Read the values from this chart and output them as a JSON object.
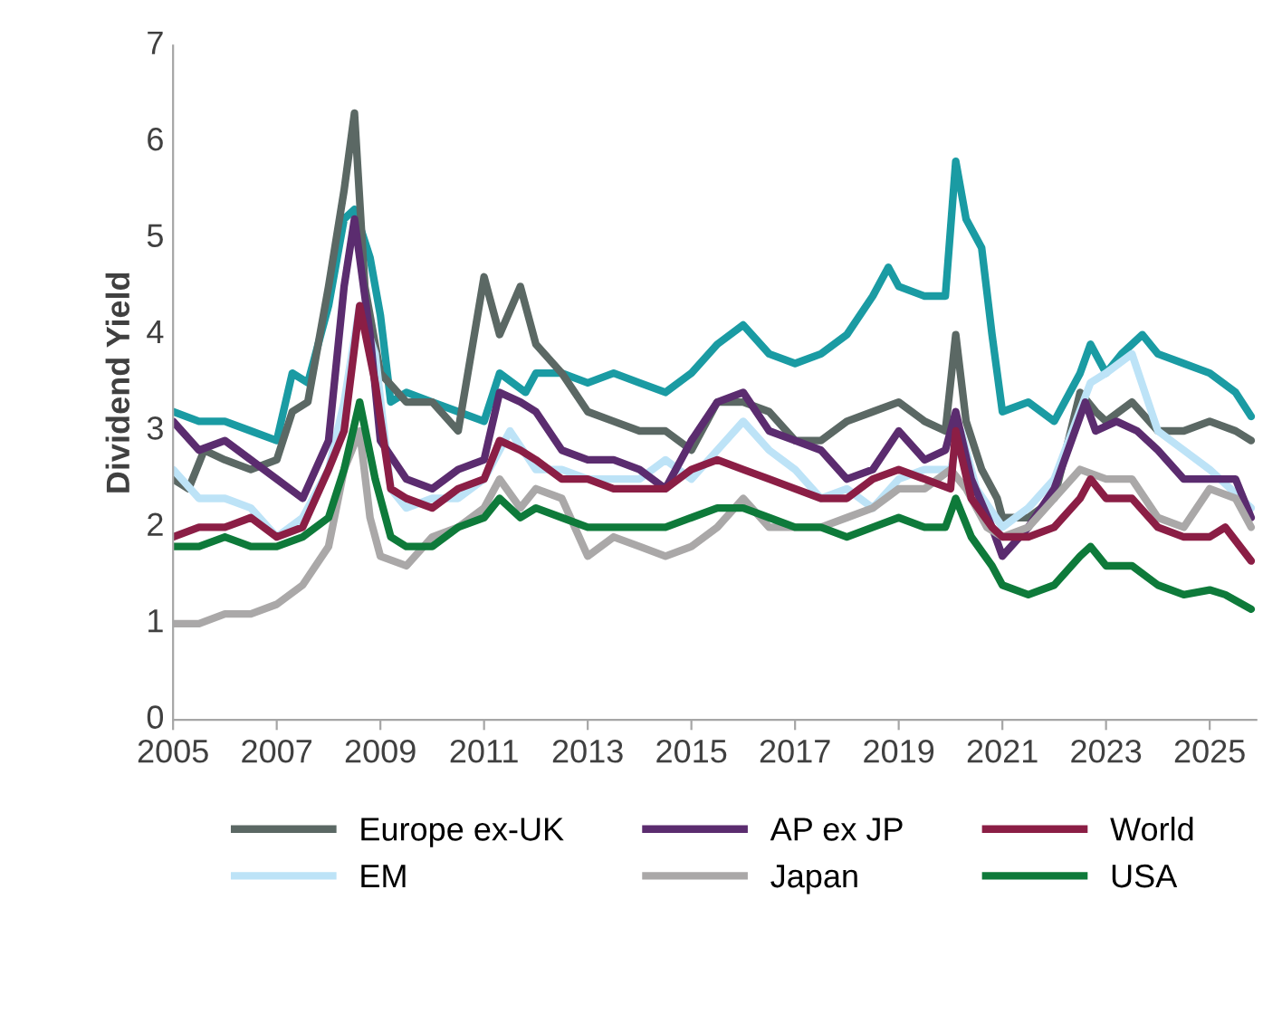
{
  "chart_data": {
    "type": "line",
    "ylabel": "Dividend Yield",
    "xlim": [
      2005,
      2025.9
    ],
    "xticks": [
      2005,
      2007,
      2009,
      2011,
      2013,
      2015,
      2017,
      2019,
      2021,
      2023,
      2025
    ],
    "ylim": [
      0,
      7
    ],
    "yticks": [
      0,
      1,
      2,
      3,
      4,
      5,
      6,
      7
    ],
    "grid": false,
    "legend": "bottom",
    "marker": "none",
    "line_style": "solid",
    "series": [
      {
        "color": "#1a9ba3",
        "x": [
          2005,
          2005.5,
          2006,
          2006.5,
          2007,
          2007.3,
          2007.6,
          2008,
          2008.3,
          2008.5,
          2008.8,
          2009,
          2009.2,
          2009.5,
          2010,
          2010.5,
          2011,
          2011.3,
          2011.8,
          2012,
          2012.5,
          2013,
          2013.5,
          2014,
          2014.5,
          2015,
          2015.5,
          2016,
          2016.5,
          2017,
          2017.5,
          2018,
          2018.5,
          2018.8,
          2019,
          2019.5,
          2019.9,
          2020.1,
          2020.3,
          2020.6,
          2020.8,
          2021,
          2021.5,
          2022,
          2022.5,
          2022.7,
          2023,
          2023.3,
          2023.7,
          2024,
          2024.5,
          2025,
          2025.5,
          2025.8
        ],
        "values": [
          3.2,
          3.1,
          3.1,
          3.0,
          2.9,
          3.6,
          3.5,
          4.3,
          5.2,
          5.3,
          4.8,
          4.2,
          3.3,
          3.4,
          3.3,
          3.2,
          3.1,
          3.6,
          3.4,
          3.6,
          3.6,
          3.5,
          3.6,
          3.5,
          3.4,
          3.6,
          3.9,
          4.1,
          3.8,
          3.7,
          3.8,
          4.0,
          4.4,
          4.7,
          4.5,
          4.4,
          4.4,
          5.8,
          5.2,
          4.9,
          4.0,
          3.2,
          3.3,
          3.1,
          3.6,
          3.9,
          3.6,
          3.8,
          4.0,
          3.8,
          3.7,
          3.6,
          3.4,
          3.15
        ]
      },
      {
        "name": "Europe ex-UK",
        "color": "#5b6864",
        "x": [
          2005,
          2005.3,
          2005.6,
          2006,
          2006.5,
          2007,
          2007.3,
          2007.6,
          2008,
          2008.3,
          2008.5,
          2008.7,
          2009,
          2009.5,
          2010,
          2010.5,
          2011,
          2011.3,
          2011.7,
          2012,
          2012.5,
          2013,
          2013.5,
          2014,
          2014.5,
          2015,
          2015.5,
          2016,
          2016.5,
          2017,
          2017.5,
          2018,
          2018.5,
          2019,
          2019.5,
          2019.9,
          2020.1,
          2020.3,
          2020.6,
          2020.9,
          2021,
          2021.5,
          2022,
          2022.5,
          2022.8,
          2023,
          2023.5,
          2024,
          2024.5,
          2025,
          2025.5,
          2025.8
        ],
        "values": [
          2.5,
          2.4,
          2.8,
          2.7,
          2.6,
          2.7,
          3.2,
          3.3,
          4.5,
          5.5,
          6.3,
          4.5,
          3.6,
          3.3,
          3.3,
          3.0,
          4.6,
          4.0,
          4.5,
          3.9,
          3.6,
          3.2,
          3.1,
          3.0,
          3.0,
          2.8,
          3.3,
          3.3,
          3.2,
          2.9,
          2.9,
          3.1,
          3.2,
          3.3,
          3.1,
          3.0,
          4.0,
          3.1,
          2.6,
          2.3,
          2.1,
          2.1,
          2.3,
          3.4,
          3.2,
          3.1,
          3.3,
          3.0,
          3.0,
          3.1,
          3.0,
          2.9
        ]
      },
      {
        "name": "EM",
        "color": "#bde3f7",
        "x": [
          2005,
          2005.5,
          2006,
          2006.5,
          2007,
          2007.5,
          2008,
          2008.3,
          2008.6,
          2008.9,
          2009.2,
          2009.5,
          2010,
          2010.5,
          2011,
          2011.5,
          2012,
          2012.5,
          2013,
          2013.5,
          2014,
          2014.5,
          2015,
          2015.5,
          2016,
          2016.5,
          2017,
          2017.5,
          2018,
          2018.5,
          2019,
          2019.5,
          2020,
          2020.2,
          2020.5,
          2021,
          2021.5,
          2022,
          2022.7,
          2023,
          2023.5,
          2024,
          2024.5,
          2025,
          2025.8
        ],
        "values": [
          2.6,
          2.3,
          2.3,
          2.2,
          1.9,
          2.1,
          2.6,
          3.3,
          4.3,
          3.8,
          2.4,
          2.2,
          2.3,
          2.3,
          2.5,
          3.0,
          2.6,
          2.6,
          2.5,
          2.5,
          2.5,
          2.7,
          2.5,
          2.8,
          3.1,
          2.8,
          2.6,
          2.3,
          2.4,
          2.2,
          2.5,
          2.6,
          2.6,
          3.0,
          2.4,
          2.0,
          2.2,
          2.5,
          3.5,
          3.6,
          3.8,
          3.0,
          2.8,
          2.6,
          2.2
        ]
      },
      {
        "name": "AP ex JP",
        "color": "#5b2c6f",
        "x": [
          2005,
          2005.5,
          2006,
          2006.5,
          2007,
          2007.5,
          2008,
          2008.3,
          2008.5,
          2008.8,
          2009,
          2009.5,
          2010,
          2010.5,
          2011,
          2011.3,
          2011.7,
          2012,
          2012.5,
          2013,
          2013.5,
          2014,
          2014.5,
          2015,
          2015.5,
          2016,
          2016.5,
          2017,
          2017.5,
          2018,
          2018.5,
          2019,
          2019.5,
          2019.9,
          2020.1,
          2020.4,
          2020.8,
          2021,
          2021.5,
          2022,
          2022.6,
          2022.8,
          2023.2,
          2023.6,
          2024,
          2024.5,
          2025,
          2025.5,
          2025.8
        ],
        "values": [
          3.1,
          2.8,
          2.9,
          2.7,
          2.5,
          2.3,
          2.9,
          4.5,
          5.2,
          4.0,
          2.9,
          2.5,
          2.4,
          2.6,
          2.7,
          3.4,
          3.3,
          3.2,
          2.8,
          2.7,
          2.7,
          2.6,
          2.4,
          2.9,
          3.3,
          3.4,
          3.0,
          2.9,
          2.8,
          2.5,
          2.6,
          3.0,
          2.7,
          2.8,
          3.2,
          2.5,
          2.0,
          1.7,
          2.0,
          2.4,
          3.3,
          3.0,
          3.1,
          3.0,
          2.8,
          2.5,
          2.5,
          2.5,
          2.1
        ]
      },
      {
        "name": "Japan",
        "color": "#aaa8a8",
        "x": [
          2005,
          2005.5,
          2006,
          2006.5,
          2007,
          2007.5,
          2008,
          2008.3,
          2008.6,
          2008.8,
          2009,
          2009.5,
          2010,
          2010.5,
          2011,
          2011.3,
          2011.7,
          2012,
          2012.5,
          2013,
          2013.5,
          2014,
          2014.5,
          2015,
          2015.5,
          2016,
          2016.5,
          2017,
          2017.5,
          2018,
          2018.5,
          2019,
          2019.5,
          2020,
          2020.3,
          2020.7,
          2021,
          2021.5,
          2022,
          2022.5,
          2023,
          2023.5,
          2024,
          2024.5,
          2025,
          2025.5,
          2025.8
        ],
        "values": [
          1.0,
          1.0,
          1.1,
          1.1,
          1.2,
          1.4,
          1.8,
          2.6,
          3.0,
          2.1,
          1.7,
          1.6,
          1.9,
          2.0,
          2.2,
          2.5,
          2.2,
          2.4,
          2.3,
          1.7,
          1.9,
          1.8,
          1.7,
          1.8,
          2.0,
          2.3,
          2.0,
          2.0,
          2.0,
          2.1,
          2.2,
          2.4,
          2.4,
          2.6,
          2.4,
          2.0,
          1.9,
          2.0,
          2.3,
          2.6,
          2.5,
          2.5,
          2.1,
          2.0,
          2.4,
          2.3,
          2.0
        ]
      },
      {
        "name": "World",
        "color": "#8b1e45",
        "x": [
          2005,
          2005.5,
          2006,
          2006.5,
          2007,
          2007.5,
          2008,
          2008.3,
          2008.6,
          2008.9,
          2009.2,
          2009.5,
          2010,
          2010.5,
          2011,
          2011.3,
          2011.7,
          2012,
          2012.5,
          2013,
          2013.5,
          2014,
          2014.5,
          2015,
          2015.5,
          2016,
          2016.5,
          2017,
          2017.5,
          2018,
          2018.5,
          2019,
          2019.5,
          2020,
          2020.1,
          2020.4,
          2020.8,
          2021,
          2021.5,
          2022,
          2022.5,
          2022.7,
          2023,
          2023.5,
          2024,
          2024.5,
          2025,
          2025.3,
          2025.8
        ],
        "values": [
          1.9,
          2.0,
          2.0,
          2.1,
          1.9,
          2.0,
          2.6,
          3.0,
          4.3,
          3.5,
          2.4,
          2.3,
          2.2,
          2.4,
          2.5,
          2.9,
          2.8,
          2.7,
          2.5,
          2.5,
          2.4,
          2.4,
          2.4,
          2.6,
          2.7,
          2.6,
          2.5,
          2.4,
          2.3,
          2.3,
          2.5,
          2.6,
          2.5,
          2.4,
          3.0,
          2.3,
          2.0,
          1.9,
          1.9,
          2.0,
          2.3,
          2.5,
          2.3,
          2.3,
          2.0,
          1.9,
          1.9,
          2.0,
          1.65
        ]
      },
      {
        "name": "USA",
        "color": "#0e7a3a",
        "x": [
          2005,
          2005.5,
          2006,
          2006.5,
          2007,
          2007.5,
          2008,
          2008.3,
          2008.6,
          2008.9,
          2009.2,
          2009.5,
          2010,
          2010.5,
          2011,
          2011.3,
          2011.7,
          2012,
          2012.5,
          2013,
          2013.5,
          2014,
          2014.5,
          2015,
          2015.5,
          2016,
          2016.5,
          2017,
          2017.5,
          2018,
          2018.5,
          2019,
          2019.5,
          2019.9,
          2020.1,
          2020.4,
          2020.8,
          2021,
          2021.5,
          2022,
          2022.5,
          2022.7,
          2023,
          2023.5,
          2024,
          2024.5,
          2025,
          2025.3,
          2025.8
        ],
        "values": [
          1.8,
          1.8,
          1.9,
          1.8,
          1.8,
          1.9,
          2.1,
          2.6,
          3.3,
          2.5,
          1.9,
          1.8,
          1.8,
          2.0,
          2.1,
          2.3,
          2.1,
          2.2,
          2.1,
          2.0,
          2.0,
          2.0,
          2.0,
          2.1,
          2.2,
          2.2,
          2.1,
          2.0,
          2.0,
          1.9,
          2.0,
          2.1,
          2.0,
          2.0,
          2.3,
          1.9,
          1.6,
          1.4,
          1.3,
          1.4,
          1.7,
          1.8,
          1.6,
          1.6,
          1.4,
          1.3,
          1.35,
          1.3,
          1.15
        ]
      }
    ]
  }
}
